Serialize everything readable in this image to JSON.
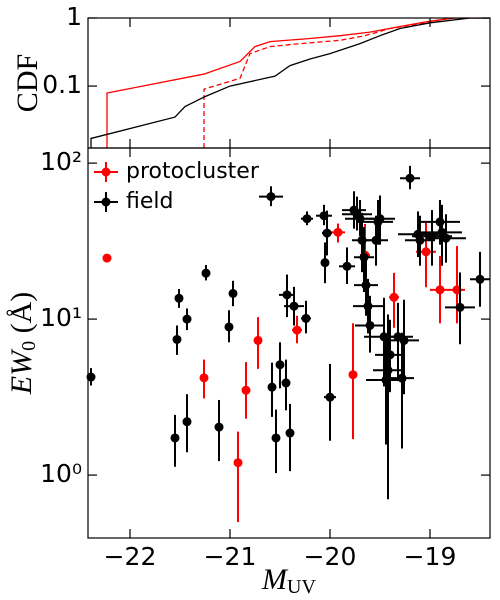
{
  "chart_data": [
    {
      "type": "line",
      "ylabel": "CDF",
      "ylog": true,
      "xlim": [
        -22.42,
        -18.4
      ],
      "ylim": [
        0.0123,
        1
      ],
      "xticks": [
        -22,
        -21,
        -20,
        -19
      ],
      "yticks": [
        0.1,
        1
      ],
      "series": [
        {
          "color": "#ff0000",
          "dashed": false,
          "x": [
            -22.23,
            -22.23,
            -21.26,
            -20.9,
            -20.75,
            -20.6,
            -20.2,
            -19.9,
            -19.6,
            -19.3,
            -19.0,
            -18.75,
            -18.4
          ],
          "values": [
            0.0123,
            0.079,
            0.15,
            0.23,
            0.38,
            0.45,
            0.5,
            0.55,
            0.62,
            0.75,
            0.9,
            1.0,
            1.0
          ]
        },
        {
          "color": "#ff0000",
          "dashed": true,
          "x": [
            -21.26,
            -21.26,
            -20.9,
            -20.8,
            -20.6,
            -20.3,
            -19.9,
            -19.65,
            -19.4,
            -19.05,
            -18.8,
            -18.4
          ],
          "values": [
            0.0123,
            0.09,
            0.13,
            0.3,
            0.38,
            0.42,
            0.47,
            0.55,
            0.7,
            0.85,
            1.0,
            1.0
          ]
        },
        {
          "color": "#000000",
          "dashed": false,
          "x": [
            -22.39,
            -22.39,
            -21.55,
            -21.45,
            -21.25,
            -21.0,
            -20.55,
            -20.4,
            -20.2,
            -20.0,
            -19.7,
            -19.5,
            -19.3,
            -19.0,
            -18.6,
            -18.4
          ],
          "values": [
            0.0123,
            0.017,
            0.035,
            0.05,
            0.07,
            0.1,
            0.14,
            0.2,
            0.25,
            0.3,
            0.42,
            0.55,
            0.7,
            0.85,
            1.0,
            1.0
          ]
        }
      ]
    },
    {
      "type": "scatter",
      "ylog": true,
      "legend": "upper left",
      "xlabel": {
        "main": "M",
        "sub": "UV"
      },
      "ylabel": {
        "main": "EW",
        "sub": "0",
        "unit": " (Å)"
      },
      "xlim": [
        -22.42,
        -18.4
      ],
      "ylim": [
        0.395,
        125
      ],
      "xticks": [
        {
          "value": -22,
          "label": "−22"
        },
        {
          "value": -21,
          "label": "−21"
        },
        {
          "value": -20,
          "label": "−20"
        },
        {
          "value": -19,
          "label": "−19"
        }
      ],
      "yticks": [
        {
          "value": 1,
          "label": "10⁰"
        },
        {
          "value": 10,
          "label": "10¹"
        },
        {
          "value": 100,
          "label": "10²"
        }
      ],
      "series": [
        {
          "name": "protocluster",
          "color": "#ff0000",
          "x": [
            -22.23,
            -21.26,
            -20.84,
            -20.92,
            -20.72,
            -20.33,
            -19.92,
            -19.77,
            -19.65,
            -19.36,
            -19.04,
            -18.9,
            -18.73
          ],
          "values": [
            24.6,
            4.2,
            3.5,
            1.2,
            7.3,
            8.5,
            36,
            4.4,
            25.7,
            13.8,
            27,
            15.4,
            15.4
          ],
          "yerr_minus": [
            null,
            1.1,
            1.2,
            0.7,
            2.5,
            1.5,
            5,
            2.7,
            10,
            5,
            11,
            6,
            6
          ],
          "yerr_plus": [
            null,
            1.3,
            1.8,
            0.7,
            3,
            2,
            5,
            5,
            15,
            6,
            15,
            10,
            14
          ],
          "xerr": [
            null,
            0,
            0,
            0,
            0,
            0.05,
            0.07,
            0,
            0.05,
            0.05,
            0.1,
            0.1,
            0.08
          ]
        },
        {
          "name": "field",
          "color": "#000000",
          "x": [
            -22.39,
            -21.55,
            -21.43,
            -21.51,
            -21.53,
            -21.43,
            -21.24,
            -21.11,
            -21.01,
            -20.97,
            -20.59,
            -20.58,
            -20.54,
            -20.5,
            -20.44,
            -20.43,
            -20.4,
            -20.36,
            -20.24,
            -20.23,
            -20.06,
            -20.05,
            -20.03,
            -20.0,
            -19.83,
            -19.76,
            -19.73,
            -19.7,
            -19.68,
            -19.66,
            -19.64,
            -19.62,
            -19.6,
            -19.54,
            -19.52,
            -19.5,
            -19.46,
            -19.44,
            -19.42,
            -19.4,
            -19.32,
            -19.28,
            -19.26,
            -19.2,
            -19.12,
            -19.1,
            -18.98,
            -18.9,
            -18.88,
            -18.84,
            -18.7,
            -18.5
          ],
          "values": [
            4.25,
            1.73,
            2.2,
            13.6,
            7.4,
            10,
            19.7,
            2.03,
            8.9,
            14.6,
            61,
            3.66,
            1.73,
            5.1,
            3.9,
            14.3,
            1.86,
            12.1,
            10.1,
            44,
            46,
            23,
            35.6,
            3.16,
            21.8,
            50,
            47,
            44,
            32,
            24.9,
            16.5,
            12.1,
            9.1,
            32,
            42,
            44,
            7.7,
            4.07,
            4.7,
            5.9,
            7.7,
            4.18,
            7.3,
            80,
            35,
            32,
            34,
            42,
            36,
            33,
            11.9,
            18
          ],
          "yerr_minus": [
            0.5,
            0.6,
            0.8,
            1.8,
            1.5,
            1.5,
            2,
            0.8,
            1.8,
            2.5,
            8,
            1.3,
            0.7,
            1.5,
            1.3,
            4,
            0.8,
            3,
            2,
            4,
            6,
            6,
            10,
            1.5,
            5,
            12,
            10,
            10,
            12,
            10,
            6,
            4,
            3,
            10,
            12,
            14,
            4,
            2.5,
            4,
            2.5,
            3.5,
            2.7,
            4,
            12,
            10,
            10,
            12,
            12,
            14,
            10,
            5,
            6
          ],
          "yerr_plus": [
            0.6,
            0.7,
            1.1,
            2,
            1.7,
            1.7,
            2.5,
            1,
            2.5,
            3,
            10,
            1.6,
            0.9,
            2,
            1.6,
            5,
            1,
            4,
            3,
            5,
            8,
            8,
            14,
            2,
            7,
            16,
            14,
            14,
            16,
            14,
            9,
            6,
            5,
            14,
            16,
            18,
            6,
            4,
            6,
            4,
            5,
            4,
            6,
            16,
            14,
            14,
            16,
            16,
            18,
            14,
            8,
            9
          ],
          "xerr": [
            0,
            0,
            0,
            0,
            0,
            0,
            0,
            0,
            0,
            0,
            0.12,
            0,
            0,
            0,
            0,
            0.08,
            0,
            0.1,
            0.05,
            0.06,
            0.08,
            0,
            0.05,
            0.06,
            0.08,
            0.12,
            0.15,
            0.15,
            0.1,
            0.1,
            0.12,
            0.15,
            0.15,
            0.12,
            0.15,
            0.15,
            0.2,
            0.2,
            0.15,
            0.15,
            0.15,
            0.12,
            0.15,
            0.1,
            0.2,
            0.15,
            0.2,
            0.2,
            0.2,
            0.2,
            0.15,
            0.1
          ]
        }
      ]
    }
  ]
}
